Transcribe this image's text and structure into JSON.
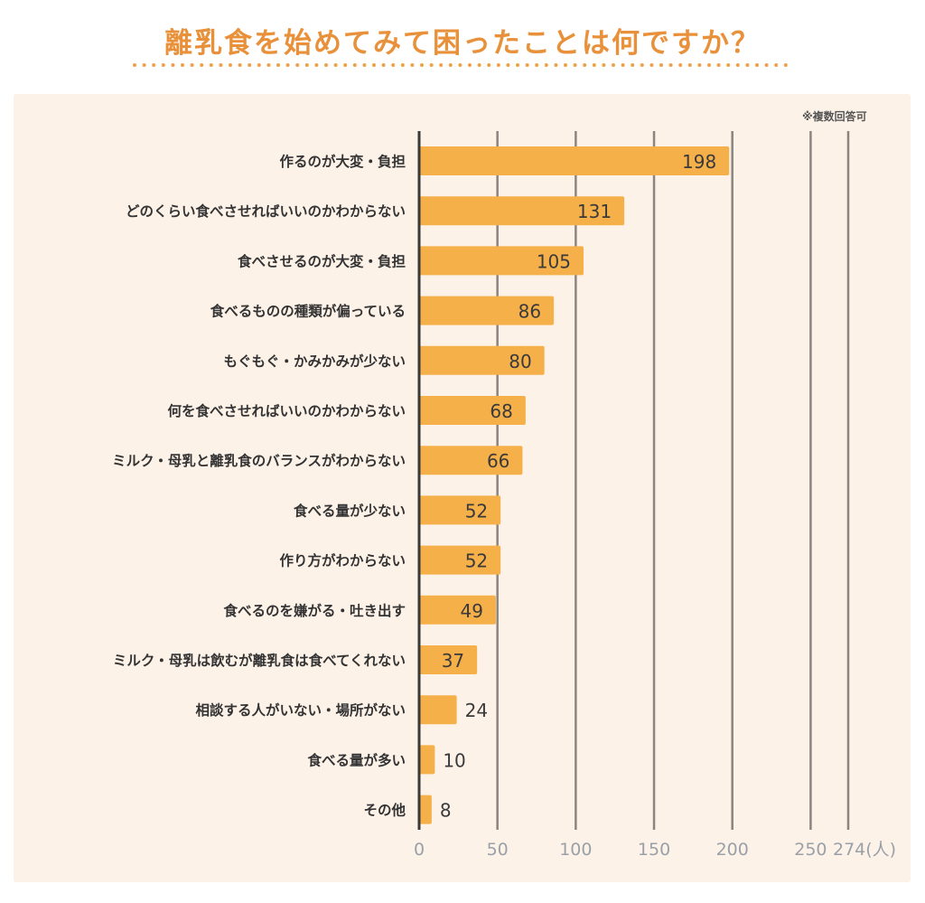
{
  "chart_data": {
    "type": "bar",
    "orientation": "horizontal",
    "title": "離乳食を始めてみて困ったことは何ですか？",
    "note": "※複数回答可",
    "categories": [
      "作るのが大変・負担",
      "どのくらい食べさせればいいのかわからない",
      "食べさせるのが大変・負担",
      "食べるものの種類が偏っている",
      "もぐもぐ・かみかみが少ない",
      "何を食べさせればいいのかわからない",
      "ミルク・母乳と離乳食のバランスがわからない",
      "食べる量が少ない",
      "作り方がわからない",
      "食べるのを嫌がる・吐き出す",
      "ミルク・母乳は飲むが離乳食は食べてくれない",
      "相談する人がいない・場所がない",
      "食べる量が多い",
      "その他"
    ],
    "values": [
      198,
      131,
      105,
      86,
      80,
      68,
      66,
      52,
      52,
      49,
      37,
      24,
      10,
      8
    ],
    "value_labels": [
      "198",
      "131",
      "105",
      "86",
      "80",
      "68",
      "66",
      "52",
      "52",
      "49",
      "37",
      "24",
      "10",
      "8"
    ],
    "x_ticks": [
      0,
      50,
      100,
      150,
      200,
      250,
      274
    ],
    "x_tick_labels": [
      "0",
      "50",
      "100",
      "150",
      "200",
      "250",
      "274(人)"
    ],
    "xlim": [
      0,
      274
    ],
    "grid": true,
    "colors": {
      "bar": "#f5b04a",
      "axis": "#3a3a3a",
      "grid": "#8c8480",
      "tick_label": "#9aa0a8",
      "category_label": "#333333",
      "value_label": "#3a3a3a",
      "title": "#e8913a",
      "panel": "#fdf2e8",
      "dots": "#f0a04a"
    }
  }
}
